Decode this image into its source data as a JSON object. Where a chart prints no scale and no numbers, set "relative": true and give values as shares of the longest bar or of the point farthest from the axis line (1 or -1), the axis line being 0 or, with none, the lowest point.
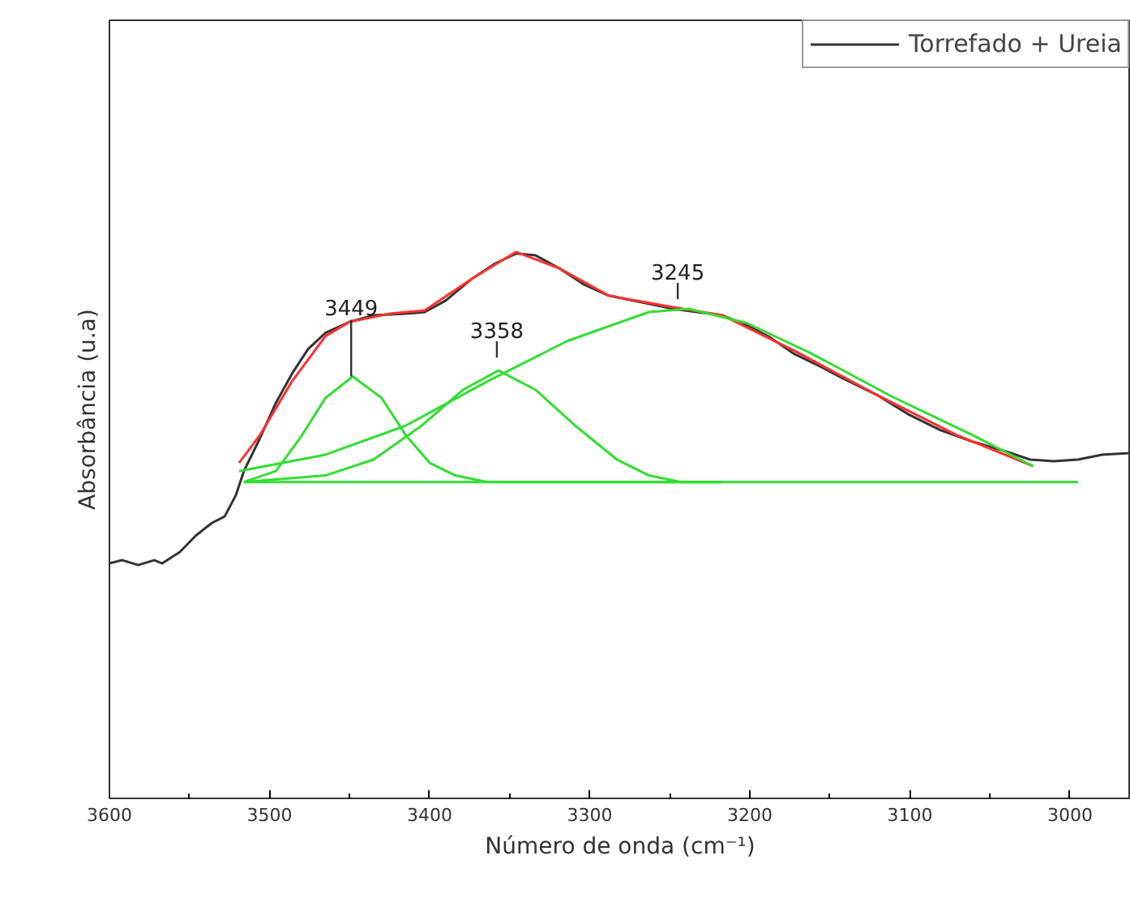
{
  "chart_data": {
    "type": "line",
    "relative": true,
    "xlabel": "Número de onda (cm⁻¹)",
    "ylabel": "Absorbância (u.a)",
    "xlim": [
      3600,
      2962
    ],
    "xticks": [
      3600,
      3500,
      3400,
      3300,
      3200,
      3100,
      3000
    ],
    "tick_labels": "x",
    "grid": false,
    "legend": "top right",
    "line_style": "solid",
    "marker": "none",
    "series": [
      {
        "name": "Torrefado + Ureia",
        "color": "#333333",
        "x": [
          3600,
          3592,
          3582,
          3572,
          3567,
          3556,
          3546,
          3536,
          3528,
          3521,
          3516,
          3506,
          3496,
          3486,
          3476,
          3465,
          3450,
          3435,
          3415,
          3403,
          3390,
          3374,
          3359,
          3346,
          3334,
          3319,
          3304,
          3288,
          3268,
          3248,
          3233,
          3217,
          3202,
          3187,
          3172,
          3157,
          3142,
          3121,
          3101,
          3081,
          3061,
          3040,
          3025,
          3010,
          2995,
          2980,
          2962
        ],
        "values": [
          0.43,
          0.436,
          0.427,
          0.436,
          0.43,
          0.451,
          0.481,
          0.504,
          0.516,
          0.555,
          0.599,
          0.659,
          0.724,
          0.777,
          0.822,
          0.852,
          0.872,
          0.884,
          0.887,
          0.89,
          0.911,
          0.95,
          0.979,
          0.997,
          0.994,
          0.97,
          0.941,
          0.92,
          0.908,
          0.896,
          0.89,
          0.884,
          0.866,
          0.843,
          0.813,
          0.792,
          0.769,
          0.739,
          0.703,
          0.674,
          0.653,
          0.635,
          0.62,
          0.617,
          0.62,
          0.629,
          0.632
        ]
      },
      {
        "color": "#ff3030",
        "x": [
          3519,
          3506,
          3486,
          3465,
          3450,
          3425,
          3403,
          3374,
          3346,
          3319,
          3288,
          3248,
          3217,
          3172,
          3121,
          3071,
          3023
        ],
        "values": [
          0.614,
          0.665,
          0.763,
          0.846,
          0.872,
          0.887,
          0.893,
          0.95,
          1.0,
          0.97,
          0.92,
          0.899,
          0.884,
          0.819,
          0.739,
          0.665,
          0.608
        ]
      },
      {
        "color": "#33dd33",
        "x": [
          3516,
          3496,
          3481,
          3465,
          3448,
          3430,
          3415,
          3400,
          3384,
          3364,
          3217
        ],
        "values": [
          0.579,
          0.599,
          0.659,
          0.733,
          0.772,
          0.733,
          0.665,
          0.614,
          0.591,
          0.579,
          0.579
        ]
      },
      {
        "color": "#33dd33",
        "x": [
          3516,
          3465,
          3435,
          3405,
          3379,
          3357,
          3334,
          3309,
          3283,
          3263,
          3243,
          3217
        ],
        "values": [
          0.579,
          0.591,
          0.62,
          0.682,
          0.748,
          0.783,
          0.748,
          0.682,
          0.62,
          0.591,
          0.579,
          0.579
        ]
      },
      {
        "color": "#33dd33",
        "x": [
          3519,
          3465,
          3415,
          3364,
          3314,
          3263,
          3238,
          3202,
          3162,
          3111,
          3061,
          3023
        ],
        "values": [
          0.599,
          0.629,
          0.682,
          0.763,
          0.837,
          0.89,
          0.896,
          0.87,
          0.815,
          0.735,
          0.665,
          0.608
        ]
      },
      {
        "color": "#33dd33",
        "x": [
          3516,
          2995
        ],
        "values": [
          0.579,
          0.579
        ]
      }
    ],
    "annotations": [
      {
        "text": "3449",
        "x": 3449,
        "y": 0.772
      },
      {
        "text": "3358",
        "x": 3358,
        "y": 0.783
      },
      {
        "text": "3245",
        "x": 3245,
        "y": 0.902
      }
    ]
  }
}
